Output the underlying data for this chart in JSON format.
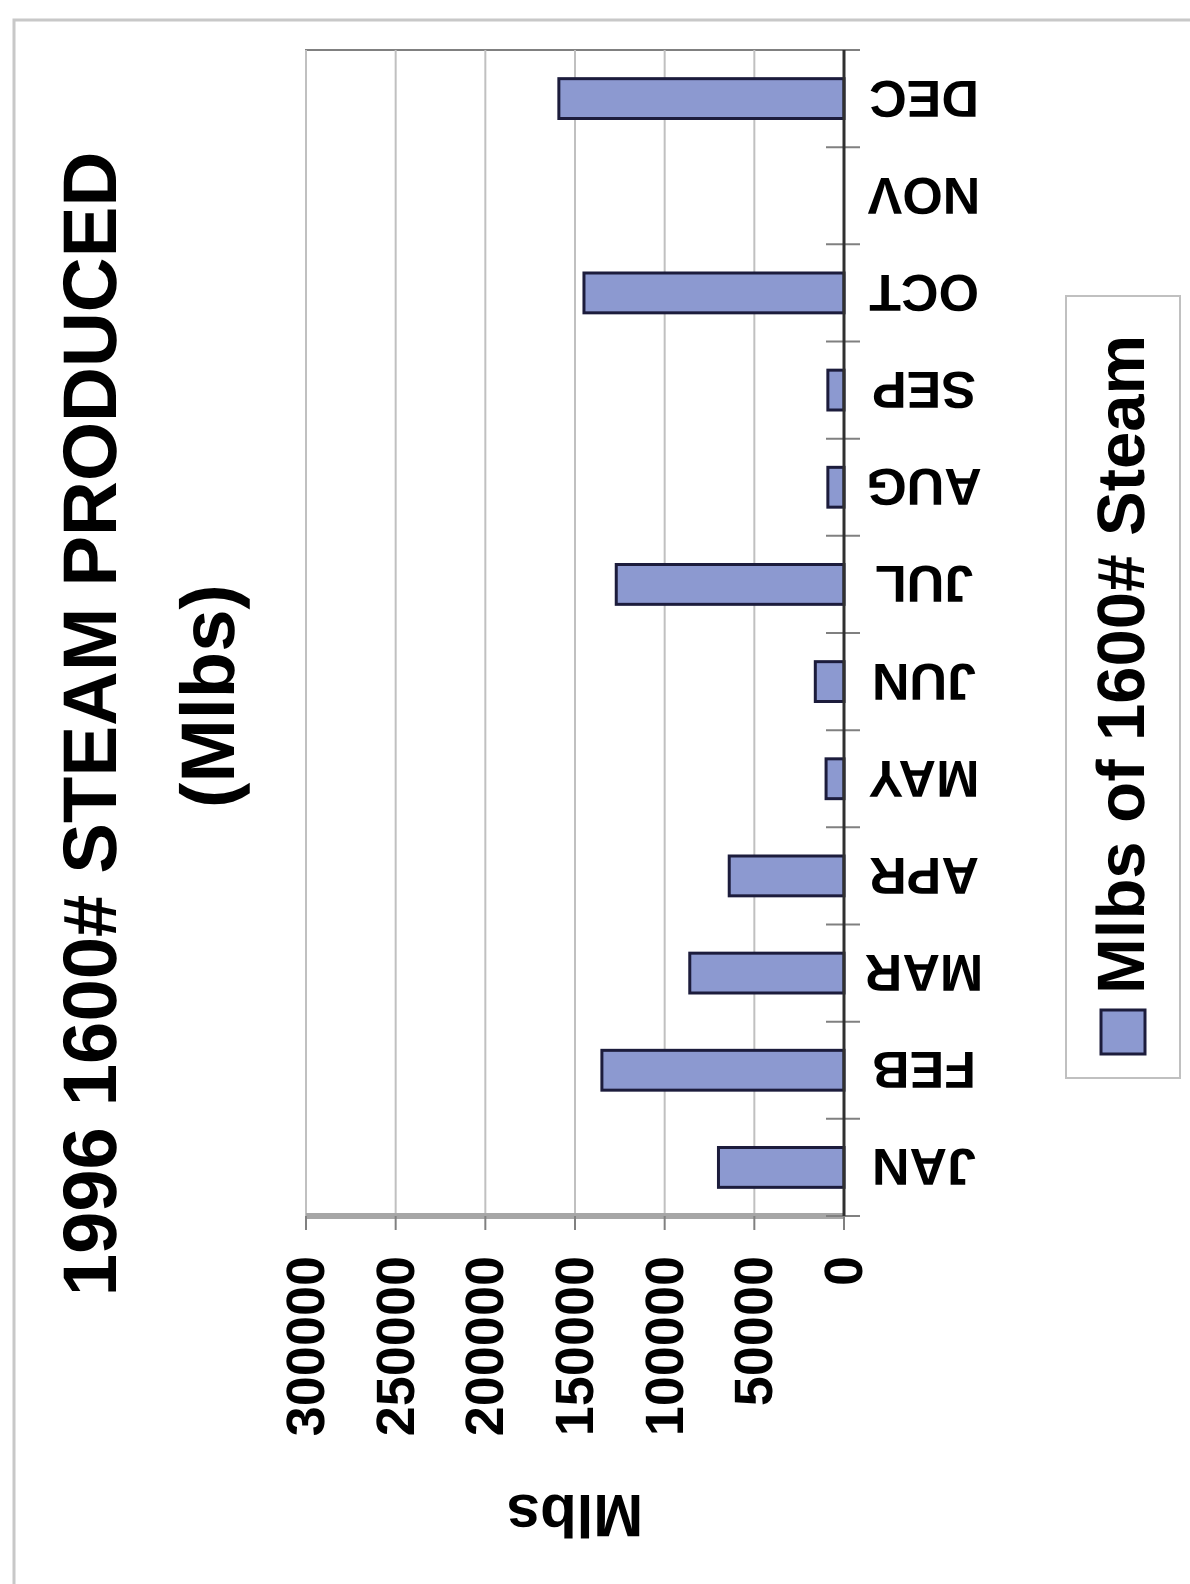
{
  "chart_data": {
    "type": "bar",
    "orientation": "horizontal",
    "title": "1996 1600# STEAM PRODUCED",
    "subtitle": "(Mlbs)",
    "xlabel": "Mlbs",
    "categories": [
      "DEC",
      "NOV",
      "OCT",
      "SEP",
      "AUG",
      "JUL",
      "JUN",
      "MAY",
      "APR",
      "MAR",
      "FEB",
      "JAN"
    ],
    "series": [
      {
        "name": "Mlbs of 1600# Steam",
        "color": "#8c99d0",
        "values": [
          159000,
          null,
          145000,
          9000,
          9000,
          127000,
          16000,
          10000,
          64000,
          86000,
          135000,
          70000
        ]
      }
    ],
    "xlim": [
      300000,
      0
    ],
    "xticks": [
      300000,
      250000,
      200000,
      150000,
      100000,
      50000,
      0
    ],
    "grid": "x",
    "legend": "right"
  }
}
